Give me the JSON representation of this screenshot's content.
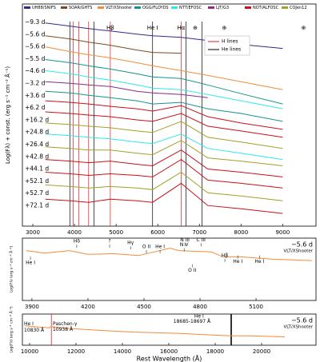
{
  "chart_data": [
    {
      "type": "line",
      "ylabel": "Log(Fλ) + const. (erg s⁻¹ cm⁻² Å⁻¹)",
      "legend": [
        {
          "name": "UH88/SNIFS",
          "color": "#33298c"
        },
        {
          "name": "SOAR/GHTS",
          "color": "#7a4a1e"
        },
        {
          "name": "VLT/XShooter",
          "color": "#f28c3a"
        },
        {
          "name": "OGG/FLOYDS",
          "color": "#15948e"
        },
        {
          "name": "NTT/EFOSC",
          "color": "#2ee8f0"
        },
        {
          "name": "LJT/G3",
          "color": "#8b2a8b"
        },
        {
          "name": "NOT/ALFOSC",
          "color": "#c8101a"
        },
        {
          "name": "COJen12",
          "color": "#a3a02a"
        }
      ],
      "x": [
        3300,
        3900,
        4340,
        4861,
        5500,
        5876,
        6563,
        7200,
        8000,
        9000
      ],
      "series": [
        {
          "label": "−9.3 d",
          "color": "#33298c",
          "values": [
            256,
            252,
            249,
            246,
            242,
            240,
            238,
            234,
            229,
            224
          ]
        },
        {
          "label": "−5.6 d",
          "color": "#7a4a1e",
          "values": [
            240,
            236,
            232,
            228,
            222,
            219,
            218,
            null,
            null,
            null
          ]
        },
        {
          "label": "−5.6 d",
          "color": "#f28c3a",
          "values": [
            226,
            220,
            216,
            212,
            206,
            202,
            196,
            190,
            182,
            172
          ]
        },
        {
          "label": "−5.5 d",
          "color": "#15948e",
          "values": [
            210,
            206,
            202,
            198,
            192,
            188,
            186,
            178,
            167,
            154
          ]
        },
        {
          "label": "−4.6 d",
          "color": "#2ee8f0",
          "values": [
            196,
            192,
            188,
            184,
            178,
            174,
            172,
            166,
            158,
            148
          ]
        },
        {
          "label": "−3.2 d",
          "color": "#8b2a8b",
          "values": [
            182,
            180,
            178,
            176,
            170,
            168,
            166,
            162,
            null,
            null
          ]
        },
        {
          "label": "+3.6 d",
          "color": "#15948e",
          "values": [
            170,
            168,
            165,
            162,
            158,
            154,
            156,
            148,
            142,
            132
          ]
        },
        {
          "label": "+6.2 d",
          "color": "#c8101a",
          "values": [
            158,
            156,
            154,
            151,
            148,
            145,
            152,
            138,
            130,
            122
          ]
        },
        {
          "label": "+16.2 d",
          "color": "#c8101a",
          "values": [
            144,
            142,
            140,
            138,
            134,
            132,
            142,
            126,
            120,
            112
          ]
        },
        {
          "label": "+24.8 d",
          "color": "#a3a02a",
          "values": [
            130,
            128,
            126,
            124,
            120,
            118,
            132,
            112,
            106,
            98
          ]
        },
        {
          "label": "+26.4 d",
          "color": "#2ee8f0",
          "values": [
            116,
            114,
            112,
            110,
            106,
            104,
            116,
            98,
            92,
            84
          ]
        },
        {
          "label": "+42.8 d",
          "color": "#a3a02a",
          "values": [
            100,
            98,
            96,
            96,
            92,
            90,
            108,
            86,
            82,
            76
          ]
        },
        {
          "label": "+44.1 d",
          "color": "#c8101a",
          "values": [
            84,
            82,
            80,
            82,
            78,
            76,
            96,
            72,
            68,
            62
          ]
        },
        {
          "label": "+52.1 d",
          "color": "#c8101a",
          "values": [
            68,
            66,
            64,
            66,
            64,
            62,
            84,
            58,
            54,
            48
          ]
        },
        {
          "label": "+52.7 d",
          "color": "#a3a02a",
          "values": [
            52,
            50,
            48,
            50,
            48,
            46,
            68,
            42,
            38,
            32
          ]
        },
        {
          "label": "+72.1 d",
          "color": "#c8101a",
          "values": [
            34,
            32,
            30,
            34,
            32,
            30,
            54,
            26,
            22,
            16
          ]
        }
      ],
      "line_markers": [
        {
          "name": "H lines",
          "color": "#e41a1c",
          "wavelengths": [
            3970,
            4102,
            4340,
            4861,
            6563
          ]
        },
        {
          "name": "He lines",
          "color": "#000000",
          "wavelengths": [
            3889,
            4471,
            5876,
            6678,
            7065
          ]
        }
      ],
      "line_labels": [
        {
          "text": "Hβ",
          "x": 4861
        },
        {
          "text": "He I",
          "x": 5876
        },
        {
          "text": "Hα",
          "x": 6563
        },
        {
          "text": "⊕",
          "x": 6900
        },
        {
          "text": "⊕",
          "x": 7600
        },
        {
          "text": "⊕",
          "x": 9500
        }
      ],
      "xlim": [
        2750,
        9800
      ],
      "ylim": [
        0,
        280
      ],
      "xticks": [
        3000,
        4000,
        5000,
        6000,
        7000,
        8000,
        9000
      ]
    },
    {
      "type": "line",
      "ylabel": "Log(Fλ) (erg s⁻¹ cm⁻² Å⁻¹)",
      "legend": {
        "label": "−5.6 d",
        "name": "VLT/XShooter",
        "color": "#f28c3a"
      },
      "x": [
        3870,
        3970,
        4100,
        4200,
        4340,
        4471,
        4640,
        4686,
        4861,
        4921,
        5015,
        5200,
        5400
      ],
      "series": [
        {
          "color": "#f28c3a",
          "values": [
            80,
            76,
            80,
            74,
            75,
            72,
            84,
            80,
            78,
            70,
            70,
            66,
            64
          ]
        }
      ],
      "annotations": [
        {
          "text": "He I",
          "x": 3892,
          "y": 60
        },
        {
          "text": "Hδ",
          "x": 4140,
          "y": 95
        },
        {
          "text": "?",
          "x": 4316,
          "y": 95
        },
        {
          "text": "Hγ",
          "x": 4428,
          "y": 92
        },
        {
          "text": "O II",
          "x": 4513,
          "y": 86
        },
        {
          "text": "He I",
          "x": 4586,
          "y": 86
        },
        {
          "text": "N III",
          "x": 4719,
          "y": 97
        },
        {
          "text": "N V",
          "x": 4715,
          "y": 89
        },
        {
          "text": "C III",
          "x": 4805,
          "y": 97
        },
        {
          "text": "O II",
          "x": 4758,
          "y": 48
        },
        {
          "text": "Hβ",
          "x": 4933,
          "y": 72
        },
        {
          "text": "He I",
          "x": 5002,
          "y": 62
        },
        {
          "text": "He I",
          "x": 5118,
          "y": 62
        }
      ],
      "xlim": [
        3849,
        5421
      ],
      "ylim": [
        0,
        100
      ],
      "xticks": [
        3900,
        4200,
        4500,
        4800,
        5100
      ]
    },
    {
      "type": "line",
      "ylabel": "Log(Fλ) (erg s⁻¹ cm⁻² Å⁻¹)",
      "xlabel": "Rest Wavelength (Å)",
      "legend": {
        "label": "−5.6 d",
        "name": "VLT/XShooter",
        "color": "#f28c3a"
      },
      "x": [
        9800,
        10830,
        10938,
        11500,
        12500,
        13500,
        14500,
        15500,
        16500,
        17500,
        18690,
        19500,
        20500,
        21000
      ],
      "series": [
        {
          "color": "#f28c3a",
          "values": [
            62,
            56,
            60,
            55,
            50,
            46,
            42,
            40,
            38,
            34,
            30,
            30,
            28,
            27
          ]
        }
      ],
      "lines": [
        {
          "x": 10938,
          "color": "#e41a1c"
        },
        {
          "x": 18690,
          "color": "#000000"
        }
      ],
      "annotations": [
        {
          "text": "He I",
          "x": 9760,
          "y": 68,
          "color": "#000000"
        },
        {
          "text": "10830 Å",
          "x": 9760,
          "y": 48,
          "color": "#000000"
        },
        {
          "text": "Paschen-γ",
          "x": 11000,
          "y": 68,
          "color": "#e41a1c"
        },
        {
          "text": "10938 Å",
          "x": 11000,
          "y": 50,
          "color": "#e41a1c"
        },
        {
          "text": "He I",
          "x": 17100,
          "y": 92,
          "color": "#000000"
        },
        {
          "text": "18685-18697 Å",
          "x": 16200,
          "y": 76,
          "color": "#000000"
        }
      ],
      "xlim": [
        9690,
        22345
      ],
      "ylim": [
        0,
        100
      ],
      "xticks": [
        10000,
        12000,
        14000,
        16000,
        18000,
        20000
      ]
    }
  ]
}
